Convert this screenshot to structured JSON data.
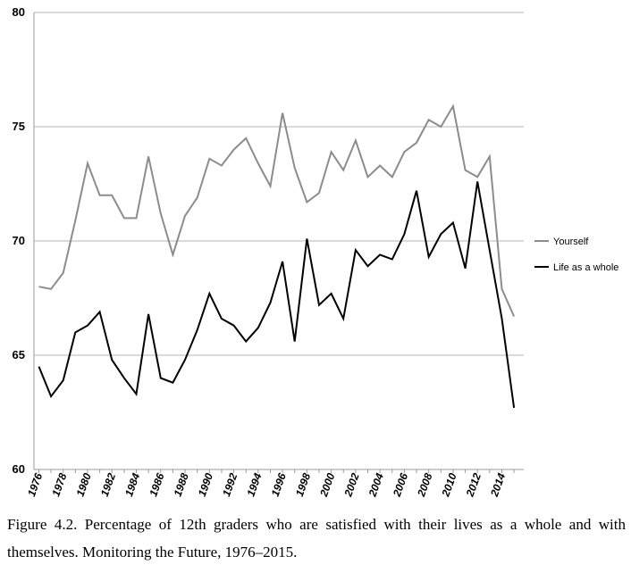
{
  "chart_data": {
    "type": "line",
    "title": "",
    "xlabel": "",
    "ylabel": "",
    "ylim": [
      60,
      80
    ],
    "yticks": [
      60,
      65,
      70,
      75,
      80
    ],
    "xlim": [
      1975.6,
      2015.8
    ],
    "x": [
      1976,
      1977,
      1978,
      1979,
      1980,
      1981,
      1982,
      1983,
      1984,
      1985,
      1986,
      1987,
      1988,
      1989,
      1990,
      1991,
      1992,
      1993,
      1994,
      1995,
      1996,
      1997,
      1998,
      1999,
      2000,
      2001,
      2002,
      2003,
      2004,
      2005,
      2006,
      2007,
      2008,
      2009,
      2010,
      2011,
      2012,
      2013,
      2014,
      2015
    ],
    "xtick_labels": [
      "1976",
      "1978",
      "1980",
      "1982",
      "1984",
      "1986",
      "1988",
      "1990",
      "1992",
      "1994",
      "1996",
      "1998",
      "2000",
      "2002",
      "2004",
      "2006",
      "2008",
      "2010",
      "2012",
      "2014"
    ],
    "grid": "horizontal",
    "legend_position": "right",
    "series": [
      {
        "name": "Yourself",
        "color": "#8c8c8c",
        "values": [
          68.0,
          67.9,
          68.6,
          70.9,
          73.4,
          72.0,
          72.0,
          71.0,
          71.0,
          73.7,
          71.2,
          69.4,
          71.1,
          71.9,
          73.6,
          73.3,
          74.0,
          74.5,
          73.4,
          72.4,
          75.6,
          73.2,
          71.7,
          72.1,
          73.9,
          73.1,
          74.4,
          72.8,
          73.3,
          72.8,
          73.9,
          74.3,
          75.3,
          75.0,
          75.9,
          73.1,
          72.8,
          73.7,
          67.9,
          66.7
        ]
      },
      {
        "name": "Life as a whole",
        "color": "#000000",
        "values": [
          64.5,
          63.2,
          63.9,
          66.0,
          66.3,
          66.9,
          64.8,
          64.0,
          63.3,
          66.8,
          64.0,
          63.8,
          64.8,
          66.1,
          67.7,
          66.6,
          66.3,
          65.6,
          66.2,
          67.3,
          69.1,
          65.6,
          70.1,
          67.2,
          67.7,
          66.6,
          69.6,
          68.9,
          69.4,
          69.2,
          70.3,
          72.2,
          69.3,
          70.3,
          70.8,
          68.8,
          72.6,
          69.6,
          66.6,
          62.7
        ]
      }
    ]
  },
  "caption": "Figure 4.2. Percentage of 12th graders who are satisfied with their lives as a whole and with themselves. Monitoring the Future, 1976–2015."
}
